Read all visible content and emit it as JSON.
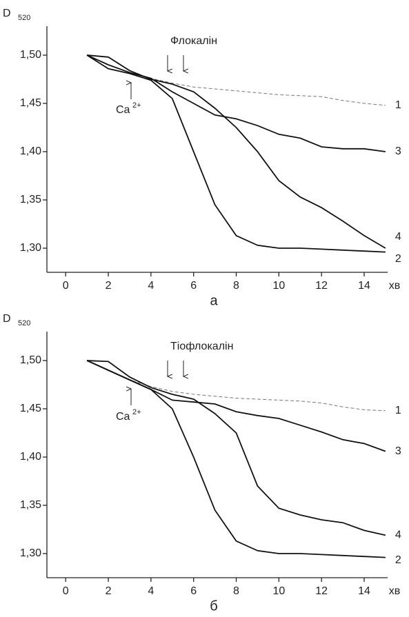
{
  "chart_data": [
    {
      "type": "line",
      "y_label": "D",
      "y_label_sub": "520",
      "x_label": "хв",
      "panel_label": "а",
      "annotation": "Флокалін",
      "ion_label": "Ca",
      "ion_charge": "2+",
      "xlim": [
        -0.88,
        15.1
      ],
      "ylim": [
        1.275,
        1.53
      ],
      "xticks": [
        0,
        2,
        4,
        6,
        8,
        10,
        12,
        14
      ],
      "yticks": [
        {
          "value": 1.3,
          "label": "1,30"
        },
        {
          "value": 1.35,
          "label": "1,35"
        },
        {
          "value": 1.4,
          "label": "1,40"
        },
        {
          "value": 1.45,
          "label": "1,45"
        },
        {
          "value": 1.5,
          "label": "1,50"
        }
      ],
      "x": [
        1,
        2,
        3,
        4,
        5,
        6,
        7,
        8,
        9,
        10,
        11,
        12,
        13,
        14,
        15
      ],
      "series": [
        {
          "name": "1",
          "color": "#777777",
          "dashed": true,
          "values": [
            1.5,
            1.49,
            1.482,
            1.476,
            1.471,
            1.467,
            1.465,
            1.463,
            1.461,
            1.459,
            1.458,
            1.457,
            1.453,
            1.45,
            1.448
          ]
        },
        {
          "name": "2",
          "color": "#111111",
          "values": [
            1.5,
            1.486,
            1.481,
            1.474,
            1.455,
            1.4,
            1.345,
            1.313,
            1.303,
            1.3,
            1.3,
            1.299,
            1.298,
            1.297,
            1.296
          ]
        },
        {
          "name": "3",
          "color": "#111111",
          "values": [
            1.5,
            1.49,
            1.482,
            1.476,
            1.462,
            1.45,
            1.438,
            1.434,
            1.427,
            1.418,
            1.414,
            1.405,
            1.403,
            1.403,
            1.4
          ]
        },
        {
          "name": "4",
          "color": "#111111",
          "values": [
            1.5,
            1.498,
            1.484,
            1.475,
            1.47,
            1.462,
            1.445,
            1.425,
            1.4,
            1.37,
            1.353,
            1.342,
            1.328,
            1.313,
            1.3
          ]
        }
      ]
    },
    {
      "type": "line",
      "y_label": "D",
      "y_label_sub": "520",
      "x_label": "хв",
      "panel_label": "б",
      "annotation": "Тіофлокалін",
      "ion_label": "Ca",
      "ion_charge": "2+",
      "xlim": [
        -0.88,
        15.1
      ],
      "ylim": [
        1.275,
        1.53
      ],
      "xticks": [
        0,
        2,
        4,
        6,
        8,
        10,
        12,
        14
      ],
      "yticks": [
        {
          "value": 1.3,
          "label": "1,30"
        },
        {
          "value": 1.35,
          "label": "1,35"
        },
        {
          "value": 1.4,
          "label": "1,40"
        },
        {
          "value": 1.45,
          "label": "1,45"
        },
        {
          "value": 1.5,
          "label": "1,50"
        }
      ],
      "x": [
        1,
        2,
        3,
        4,
        5,
        6,
        7,
        8,
        9,
        10,
        11,
        12,
        13,
        14,
        15
      ],
      "series": [
        {
          "name": "1",
          "color": "#777777",
          "dashed": true,
          "values": [
            1.5,
            1.49,
            1.48,
            1.473,
            1.468,
            1.465,
            1.463,
            1.461,
            1.46,
            1.459,
            1.458,
            1.456,
            1.452,
            1.449,
            1.448
          ]
        },
        {
          "name": "2",
          "color": "#111111",
          "values": [
            1.5,
            1.49,
            1.48,
            1.47,
            1.45,
            1.4,
            1.345,
            1.313,
            1.303,
            1.3,
            1.3,
            1.299,
            1.298,
            1.297,
            1.296
          ]
        },
        {
          "name": "3",
          "color": "#111111",
          "values": [
            1.5,
            1.49,
            1.48,
            1.47,
            1.459,
            1.457,
            1.455,
            1.447,
            1.443,
            1.44,
            1.433,
            1.426,
            1.418,
            1.414,
            1.406
          ]
        },
        {
          "name": "4",
          "color": "#111111",
          "values": [
            1.5,
            1.499,
            1.483,
            1.472,
            1.465,
            1.46,
            1.445,
            1.425,
            1.37,
            1.347,
            1.34,
            1.335,
            1.332,
            1.324,
            1.319
          ]
        }
      ]
    }
  ]
}
